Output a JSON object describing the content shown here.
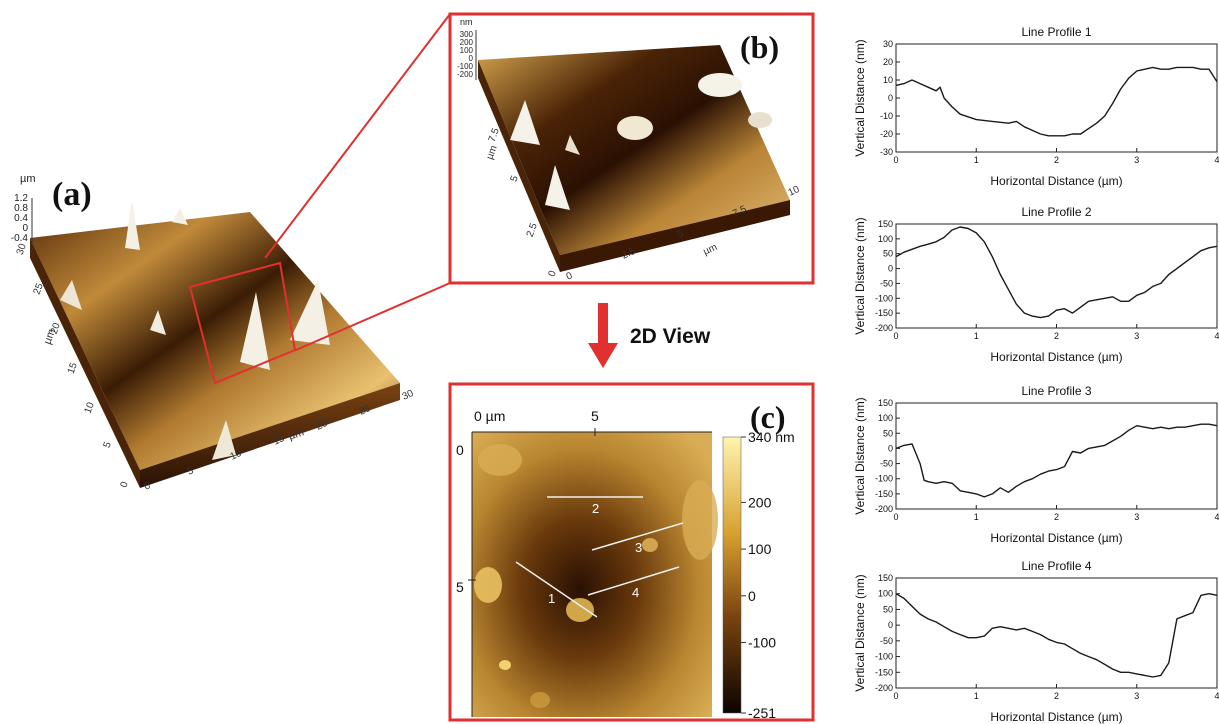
{
  "colors": {
    "frame": "#e03030",
    "surface_light": "#f2dca0",
    "surface_dark": "#3a1c05",
    "line": "#1a1a1a"
  },
  "panel_a": {
    "label": "(a)",
    "z_unit": "µm",
    "z_ticks": [
      "1.2",
      "0.8",
      "0.4",
      "0",
      "-0.4"
    ],
    "y_unit": "µm",
    "y_ticks": [
      "0",
      "5",
      "10",
      "15",
      "20",
      "25",
      "30"
    ],
    "x_unit": "µm",
    "x_ticks": [
      "0",
      "5",
      "10",
      "15",
      "20",
      "25",
      "30"
    ]
  },
  "panel_b": {
    "label": "(b)",
    "z_unit": "nm",
    "z_ticks": [
      "300",
      "200",
      "100",
      "0",
      "-100",
      "-200"
    ],
    "y_unit": "µm",
    "y_ticks": [
      "0",
      "2.5",
      "5",
      "7.5"
    ],
    "x_unit": "µm",
    "x_ticks": [
      "0",
      "2.5",
      "5",
      "7.5",
      "10"
    ]
  },
  "arrow_label": "2D View",
  "panel_c": {
    "label": "(c)",
    "x_ticks": [
      "0 µm",
      "5"
    ],
    "y_ticks": [
      "0",
      "5"
    ],
    "colorbar_ticks": [
      "340 nm",
      "200",
      "100",
      "0",
      "-100",
      "-251"
    ],
    "line_labels": [
      "1",
      "2",
      "3",
      "4"
    ]
  },
  "chart_data": [
    {
      "type": "line",
      "title": "Line Profile 1",
      "xlabel": "Horizontal Distance (µm)",
      "ylabel": "Vertical Distance (nm)",
      "xlim": [
        0,
        4
      ],
      "ylim": [
        -30,
        30
      ],
      "xticks": [
        "0",
        "1",
        "2",
        "3",
        "4"
      ],
      "yticks": [
        "30",
        "20",
        "10",
        "0",
        "-10",
        "-20",
        "-30"
      ],
      "x": [
        0,
        0.1,
        0.2,
        0.3,
        0.4,
        0.5,
        0.55,
        0.6,
        0.7,
        0.8,
        1.0,
        1.2,
        1.4,
        1.5,
        1.6,
        1.7,
        1.8,
        1.9,
        2.0,
        2.1,
        2.2,
        2.3,
        2.4,
        2.5,
        2.6,
        2.7,
        2.8,
        2.9,
        3.0,
        3.1,
        3.2,
        3.3,
        3.4,
        3.5,
        3.6,
        3.7,
        3.8,
        3.9,
        4.0
      ],
      "y": [
        7,
        8,
        10,
        8,
        6,
        4,
        6,
        0,
        -5,
        -9,
        -12,
        -13,
        -14,
        -13,
        -16,
        -18,
        -20,
        -21,
        -21,
        -21,
        -20,
        -20,
        -17,
        -14,
        -10,
        -3,
        5,
        11,
        15,
        16,
        17,
        16,
        16,
        17,
        17,
        17,
        16,
        16,
        9
      ]
    },
    {
      "type": "line",
      "title": "Line Profile 2",
      "xlabel": "Horizontal Distance (µm)",
      "ylabel": "Vertical Distance (nm)",
      "xlim": [
        0,
        4
      ],
      "ylim": [
        -200,
        150
      ],
      "xticks": [
        "0",
        "1",
        "2",
        "3",
        "4"
      ],
      "yticks": [
        "150",
        "100",
        "50",
        "0",
        "-50",
        "-100",
        "-150",
        "-200"
      ],
      "x": [
        0,
        0.1,
        0.2,
        0.3,
        0.4,
        0.5,
        0.6,
        0.7,
        0.8,
        0.9,
        1.0,
        1.1,
        1.2,
        1.3,
        1.4,
        1.5,
        1.6,
        1.7,
        1.8,
        1.9,
        2.0,
        2.1,
        2.2,
        2.3,
        2.4,
        2.5,
        2.6,
        2.7,
        2.8,
        2.9,
        3.0,
        3.1,
        3.2,
        3.3,
        3.4,
        3.5,
        3.6,
        3.7,
        3.8,
        3.9,
        4.0
      ],
      "y": [
        40,
        55,
        65,
        75,
        82,
        90,
        105,
        130,
        140,
        135,
        120,
        90,
        40,
        -20,
        -70,
        -120,
        -150,
        -160,
        -165,
        -160,
        -140,
        -135,
        -150,
        -130,
        -110,
        -105,
        -100,
        -95,
        -110,
        -110,
        -90,
        -80,
        -60,
        -50,
        -20,
        0,
        20,
        40,
        60,
        70,
        75
      ]
    },
    {
      "type": "line",
      "title": "Line Profile 3",
      "xlabel": "Horizontal Distance (µm)",
      "ylabel": "Vertical Distance (nm)",
      "xlim": [
        0,
        4
      ],
      "ylim": [
        -200,
        150
      ],
      "xticks": [
        "0",
        "1",
        "2",
        "3",
        "4"
      ],
      "yticks": [
        "150",
        "100",
        "50",
        "0",
        "-50",
        "-100",
        "-150",
        "-200"
      ],
      "x": [
        0,
        0.1,
        0.2,
        0.3,
        0.35,
        0.4,
        0.5,
        0.6,
        0.7,
        0.8,
        0.9,
        1.0,
        1.1,
        1.2,
        1.3,
        1.4,
        1.5,
        1.6,
        1.7,
        1.8,
        1.9,
        2.0,
        2.1,
        2.2,
        2.3,
        2.4,
        2.5,
        2.6,
        2.7,
        2.8,
        2.9,
        3.0,
        3.1,
        3.2,
        3.3,
        3.4,
        3.5,
        3.6,
        3.7,
        3.8,
        3.9,
        4.0
      ],
      "y": [
        0,
        10,
        15,
        -50,
        -105,
        -110,
        -115,
        -110,
        -115,
        -140,
        -145,
        -150,
        -160,
        -150,
        -130,
        -145,
        -125,
        -110,
        -100,
        -85,
        -75,
        -70,
        -60,
        -10,
        -15,
        0,
        5,
        10,
        25,
        40,
        60,
        75,
        70,
        65,
        70,
        65,
        70,
        70,
        75,
        80,
        80,
        75
      ]
    },
    {
      "type": "line",
      "title": "Line Profile 4",
      "xlabel": "Horizontal Distance (µm)",
      "ylabel": "Vertical Distance (nm)",
      "xlim": [
        0,
        4
      ],
      "ylim": [
        -200,
        150
      ],
      "xticks": [
        "0",
        "1",
        "2",
        "3",
        "4"
      ],
      "yticks": [
        "150",
        "100",
        "50",
        "0",
        "-50",
        "-100",
        "-150",
        "-200"
      ],
      "x": [
        0,
        0.1,
        0.2,
        0.3,
        0.4,
        0.5,
        0.6,
        0.7,
        0.8,
        0.9,
        1.0,
        1.1,
        1.2,
        1.3,
        1.4,
        1.5,
        1.6,
        1.7,
        1.8,
        1.9,
        2.0,
        2.1,
        2.2,
        2.3,
        2.4,
        2.5,
        2.6,
        2.7,
        2.8,
        2.9,
        3.0,
        3.1,
        3.2,
        3.3,
        3.4,
        3.5,
        3.6,
        3.7,
        3.8,
        3.9,
        4.0
      ],
      "y": [
        100,
        85,
        60,
        35,
        20,
        10,
        -5,
        -20,
        -30,
        -40,
        -40,
        -35,
        -10,
        -5,
        -10,
        -15,
        -10,
        -20,
        -30,
        -45,
        -55,
        -60,
        -75,
        -90,
        -100,
        -110,
        -125,
        -140,
        -150,
        -150,
        -155,
        -160,
        -165,
        -160,
        -120,
        20,
        30,
        40,
        95,
        100,
        95
      ]
    }
  ]
}
